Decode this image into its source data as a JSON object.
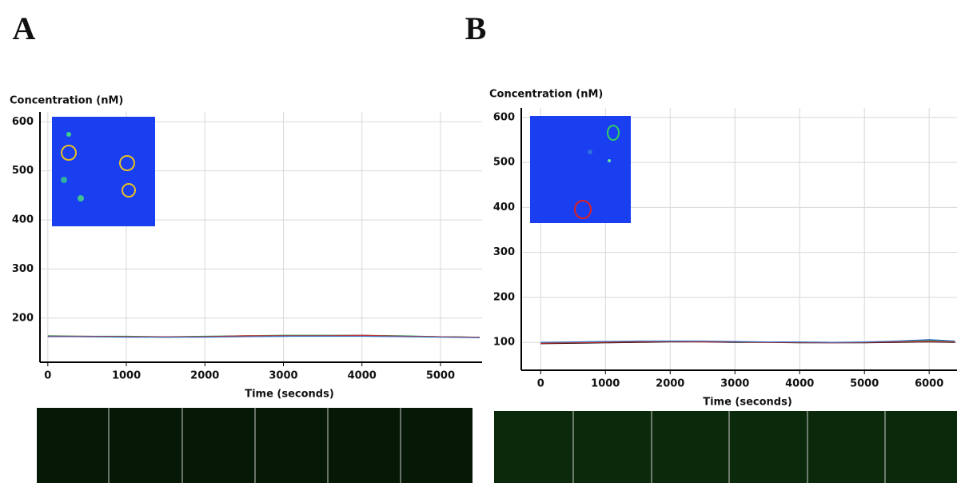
{
  "chart_data": [
    {
      "type": "line",
      "panel": "A",
      "y_label": "Concentration (nM)",
      "x_label": "Time (seconds)",
      "x": [
        0,
        500,
        1000,
        1500,
        2000,
        2500,
        3000,
        3500,
        4000,
        4500,
        5000,
        5500
      ],
      "series": [
        {
          "color": "#000000",
          "values": [
            163,
            162,
            162,
            161,
            162,
            163,
            163,
            164,
            164,
            163,
            162,
            161
          ]
        },
        {
          "color": "#2e9e5a",
          "values": [
            164,
            163,
            163,
            162,
            163,
            164,
            165,
            165,
            165,
            164,
            162,
            161
          ]
        },
        {
          "color": "#d03030",
          "values": [
            163,
            163,
            162,
            162,
            162,
            164,
            164,
            164,
            165,
            163,
            162,
            161
          ]
        },
        {
          "color": "#2f6fbf",
          "values": [
            162,
            162,
            161,
            161,
            161,
            162,
            163,
            163,
            163,
            162,
            161,
            160
          ]
        }
      ],
      "xlim": [
        -100,
        5530
      ],
      "ylim": [
        110,
        620
      ],
      "xticks": [
        0,
        1000,
        2000,
        3000,
        4000,
        5000
      ],
      "yticks": [
        200,
        300,
        400,
        500,
        600
      ],
      "grid": true
    },
    {
      "type": "line",
      "panel": "B",
      "y_label": "Concentration (nM)",
      "x_label": "Time (seconds)",
      "x": [
        0,
        500,
        1000,
        1500,
        2000,
        2500,
        3000,
        3500,
        4000,
        4500,
        5000,
        5500,
        6000,
        6400
      ],
      "series": [
        {
          "color": "#000000",
          "values": [
            97,
            98,
            99,
            100,
            101,
            101,
            100,
            100,
            99,
            99,
            99,
            100,
            101,
            100
          ]
        },
        {
          "color": "#2e9e5a",
          "values": [
            99,
            100,
            101,
            102,
            102,
            102,
            101,
            101,
            100,
            100,
            100,
            102,
            104,
            102
          ]
        },
        {
          "color": "#d03030",
          "values": [
            98,
            99,
            100,
            101,
            102,
            101,
            101,
            100,
            100,
            99,
            100,
            101,
            102,
            101
          ]
        },
        {
          "color": "#2f6fbf",
          "values": [
            100,
            101,
            102,
            103,
            103,
            103,
            102,
            101,
            101,
            100,
            101,
            103,
            106,
            103
          ]
        }
      ],
      "xlim": [
        -300,
        6430
      ],
      "ylim": [
        38,
        621
      ],
      "xticks": [
        0,
        1000,
        2000,
        3000,
        4000,
        5000,
        6000
      ],
      "yticks": [
        100,
        200,
        300,
        400,
        500,
        600
      ],
      "grid": true
    }
  ]
}
